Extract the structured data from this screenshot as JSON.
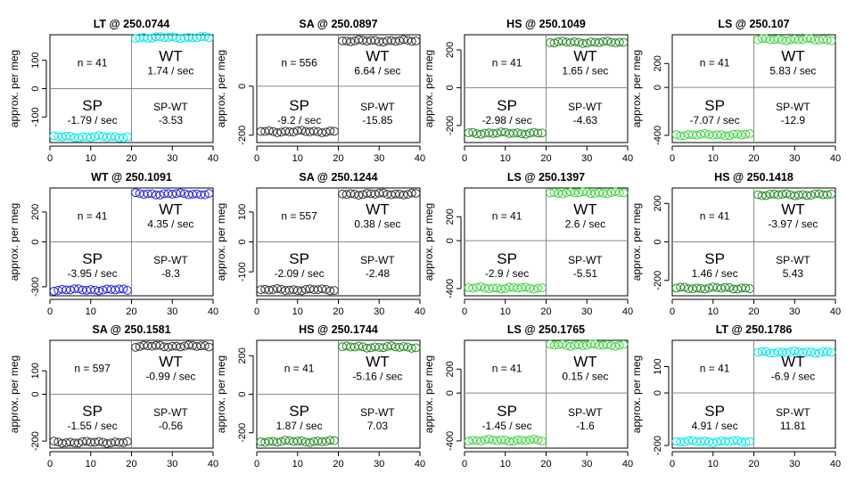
{
  "figure": {
    "ylabel": "approx. per meg",
    "x_ticks": [
      0,
      10,
      20,
      30,
      40
    ]
  },
  "chart_data": [
    {
      "type": "scatter",
      "title": "LT @ 250.0744",
      "color": "#00e5ee",
      "ylabel": "approx. per meg",
      "xlim": [
        0,
        40
      ],
      "ylim": [
        -190,
        190
      ],
      "yticks": [
        -100,
        0,
        100
      ],
      "sp_mean": -170,
      "wt_mean": 180,
      "n": "n = 41",
      "sp_rate": "-1.79 / sec",
      "wt_rate": "1.74 / sec",
      "diff": "-3.53",
      "sp_label": "SP",
      "wt_label": "WT",
      "diff_label": "SP-WT"
    },
    {
      "type": "scatter",
      "title": "SA @ 250.0897",
      "color": "#333333",
      "ylabel": "approx. per meg",
      "xlim": [
        0,
        40
      ],
      "ylim": [
        -230,
        210
      ],
      "yticks": [
        -200,
        0
      ],
      "sp_mean": -185,
      "wt_mean": 185,
      "n": "n = 556",
      "sp_rate": "-9.2 / sec",
      "wt_rate": "6.64 / sec",
      "diff": "-15.85",
      "sp_label": "SP",
      "wt_label": "WT",
      "diff_label": "SP-WT"
    },
    {
      "type": "scatter",
      "title": "HS @ 250.1049",
      "color": "#228b22",
      "ylabel": "approx. per meg",
      "xlim": [
        0,
        40
      ],
      "ylim": [
        -290,
        280
      ],
      "yticks": [
        -200,
        0,
        200
      ],
      "sp_mean": -240,
      "wt_mean": 240,
      "n": "n = 41",
      "sp_rate": "-2.98 / sec",
      "wt_rate": "1.65 / sec",
      "diff": "-4.63",
      "sp_label": "SP",
      "wt_label": "WT",
      "diff_label": "SP-WT"
    },
    {
      "type": "scatter",
      "title": "LS @ 250.107",
      "color": "#3ed43e",
      "ylabel": "approx. per meg",
      "xlim": [
        0,
        40
      ],
      "ylim": [
        -460,
        440
      ],
      "yticks": [
        -400,
        0,
        200
      ],
      "sp_mean": -395,
      "wt_mean": 400,
      "n": "n = 41",
      "sp_rate": "-7.07 / sec",
      "wt_rate": "5.83 / sec",
      "diff": "-12.9",
      "sp_label": "SP",
      "wt_label": "WT",
      "diff_label": "SP-WT"
    },
    {
      "type": "scatter",
      "title": "WT @ 250.1091",
      "color": "#2222dd",
      "ylabel": "approx. per meg",
      "xlim": [
        0,
        40
      ],
      "ylim": [
        -360,
        360
      ],
      "yticks": [
        -300,
        0,
        200
      ],
      "sp_mean": -320,
      "wt_mean": 320,
      "n": "n = 41",
      "sp_rate": "-3.95 / sec",
      "wt_rate": "4.35 / sec",
      "diff": "-8.3",
      "sp_label": "SP",
      "wt_label": "WT",
      "diff_label": "SP-WT"
    },
    {
      "type": "scatter",
      "title": "SA @ 250.1244",
      "color": "#333333",
      "ylabel": "approx. per meg",
      "xlim": [
        0,
        40
      ],
      "ylim": [
        -180,
        180
      ],
      "yticks": [
        -100,
        0,
        100
      ],
      "sp_mean": -160,
      "wt_mean": 160,
      "n": "n = 557",
      "sp_rate": "-2.09 / sec",
      "wt_rate": "0.38 / sec",
      "diff": "-2.48",
      "sp_label": "SP",
      "wt_label": "WT",
      "diff_label": "SP-WT"
    },
    {
      "type": "scatter",
      "title": "LS @ 250.1397",
      "color": "#3ed43e",
      "ylabel": "approx. per meg",
      "xlim": [
        0,
        40
      ],
      "ylim": [
        -460,
        440
      ],
      "yticks": [
        -400,
        0,
        200
      ],
      "sp_mean": -395,
      "wt_mean": 400,
      "n": "n = 41",
      "sp_rate": "-2.9 / sec",
      "wt_rate": "2.6 / sec",
      "diff": "-5.51",
      "sp_label": "SP",
      "wt_label": "WT",
      "diff_label": "SP-WT"
    },
    {
      "type": "scatter",
      "title": "HS @ 250.1418",
      "color": "#228b22",
      "ylabel": "approx. per meg",
      "xlim": [
        0,
        40
      ],
      "ylim": [
        -280,
        280
      ],
      "yticks": [
        -200,
        0,
        200
      ],
      "sp_mean": -240,
      "wt_mean": 245,
      "n": "n = 41",
      "sp_rate": "1.46 / sec",
      "wt_rate": "-3.97 / sec",
      "diff": "5.43",
      "sp_label": "SP",
      "wt_label": "WT",
      "diff_label": "SP-WT"
    },
    {
      "type": "scatter",
      "title": "SA @ 250.1581",
      "color": "#333333",
      "ylabel": "approx. per meg",
      "xlim": [
        0,
        40
      ],
      "ylim": [
        -230,
        230
      ],
      "yticks": [
        -200,
        0,
        100
      ],
      "sp_mean": -205,
      "wt_mean": 205,
      "n": "n = 597",
      "sp_rate": "-1.55 / sec",
      "wt_rate": "-0.99 / sec",
      "diff": "-0.56",
      "sp_label": "SP",
      "wt_label": "WT",
      "diff_label": "SP-WT"
    },
    {
      "type": "scatter",
      "title": "HS @ 250.1744",
      "color": "#228b22",
      "ylabel": "approx. per meg",
      "xlim": [
        0,
        40
      ],
      "ylim": [
        -280,
        280
      ],
      "yticks": [
        -200,
        0,
        200
      ],
      "sp_mean": -245,
      "wt_mean": 245,
      "n": "n = 41",
      "sp_rate": "1.87 / sec",
      "wt_rate": "-5.16 / sec",
      "diff": "7.03",
      "sp_label": "SP",
      "wt_label": "WT",
      "diff_label": "SP-WT"
    },
    {
      "type": "scatter",
      "title": "LS @ 250.1765",
      "color": "#3ed43e",
      "ylabel": "approx. per meg",
      "xlim": [
        0,
        40
      ],
      "ylim": [
        -460,
        440
      ],
      "yticks": [
        -400,
        0,
        200
      ],
      "sp_mean": -395,
      "wt_mean": 400,
      "n": "n = 41",
      "sp_rate": "-1.45 / sec",
      "wt_rate": "0.15 / sec",
      "diff": "-1.6",
      "sp_label": "SP",
      "wt_label": "WT",
      "diff_label": "SP-WT"
    },
    {
      "type": "scatter",
      "title": "LT @ 250.1786",
      "color": "#00e5ee",
      "ylabel": "approx. per meg",
      "xlim": [
        0,
        40
      ],
      "ylim": [
        -210,
        200
      ],
      "yticks": [
        -200,
        0,
        100
      ],
      "sp_mean": -185,
      "wt_mean": 155,
      "n": "n = 41",
      "sp_rate": "4.91 / sec",
      "wt_rate": "-6.9 / sec",
      "diff": "11.81",
      "sp_label": "SP",
      "wt_label": "WT",
      "diff_label": "SP-WT"
    }
  ]
}
